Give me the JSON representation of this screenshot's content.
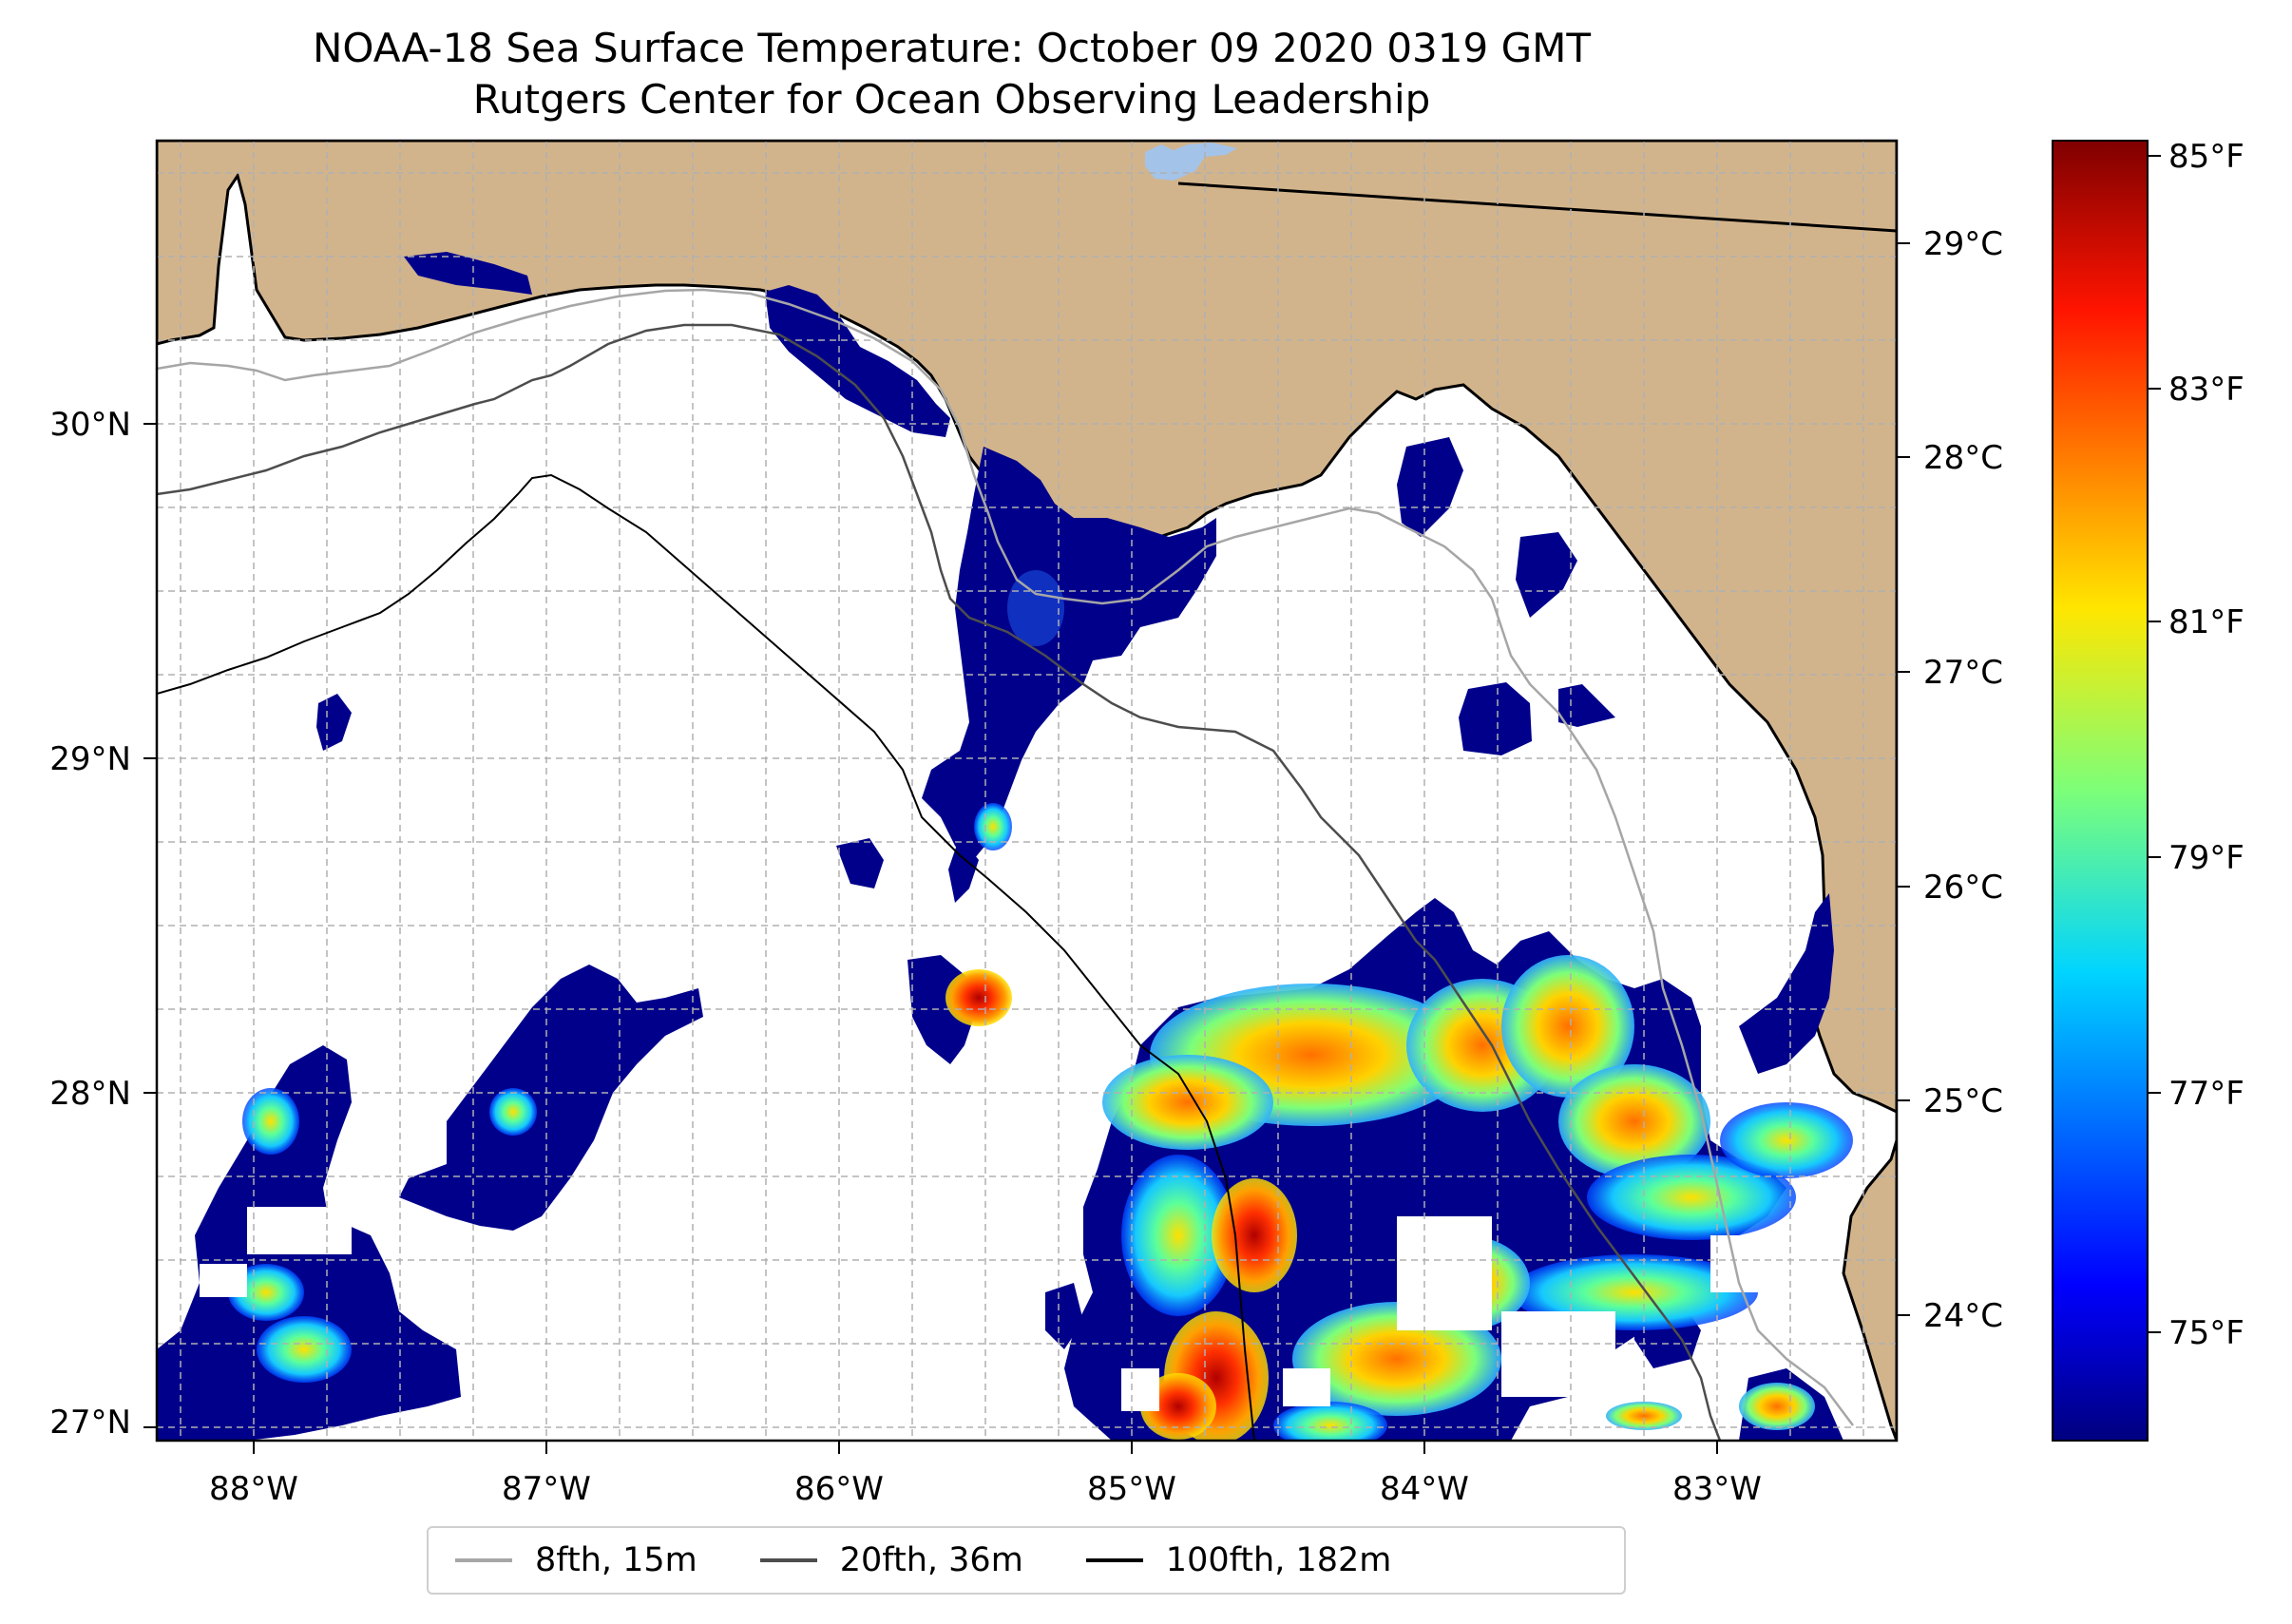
{
  "title": {
    "line1": "NOAA-18 Sea Surface Temperature: October 09 2020 0319 GMT",
    "line2": "Rutgers Center for Ocean Observing Leadership"
  },
  "map": {
    "lon_range": [
      -88.33,
      -82.38
    ],
    "lat_range": [
      26.93,
      30.85
    ],
    "gridlines": "dashed",
    "land_color": "#d2b48c",
    "lake_color": "#a4c3e8",
    "lon_ticks": [
      {
        "value": -88,
        "label": "88°W"
      },
      {
        "value": -87,
        "label": "87°W"
      },
      {
        "value": -86,
        "label": "86°W"
      },
      {
        "value": -85,
        "label": "85°W"
      },
      {
        "value": -84,
        "label": "84°W"
      },
      {
        "value": -83,
        "label": "83°W"
      }
    ],
    "lat_ticks": [
      {
        "value": 30,
        "label": "30°N"
      },
      {
        "value": 29,
        "label": "29°N"
      },
      {
        "value": 28,
        "label": "28°N"
      },
      {
        "value": 27,
        "label": "27°N"
      }
    ]
  },
  "colorbar": {
    "colormap": "jet",
    "celsius_ticks": [
      {
        "value": 29,
        "label": "29°C"
      },
      {
        "value": 28,
        "label": "28°C"
      },
      {
        "value": 27,
        "label": "27°C"
      },
      {
        "value": 26,
        "label": "26°C"
      },
      {
        "value": 25,
        "label": "25°C"
      },
      {
        "value": 24,
        "label": "24°C"
      }
    ],
    "fahrenheit_ticks": [
      {
        "value": 85,
        "label": "85°F"
      },
      {
        "value": 83,
        "label": "83°F"
      },
      {
        "value": 81,
        "label": "81°F"
      },
      {
        "value": 79,
        "label": "79°F"
      },
      {
        "value": 77,
        "label": "77°F"
      },
      {
        "value": 75,
        "label": "75°F"
      }
    ],
    "range_f": [
      74.3,
      85.2
    ]
  },
  "legend": {
    "items": [
      {
        "label": "8fth, 15m",
        "color": "#a6a6a6"
      },
      {
        "label": "20fth, 36m",
        "color": "#4d4d4d"
      },
      {
        "label": "100fth, 182m",
        "color": "#000000"
      }
    ]
  }
}
